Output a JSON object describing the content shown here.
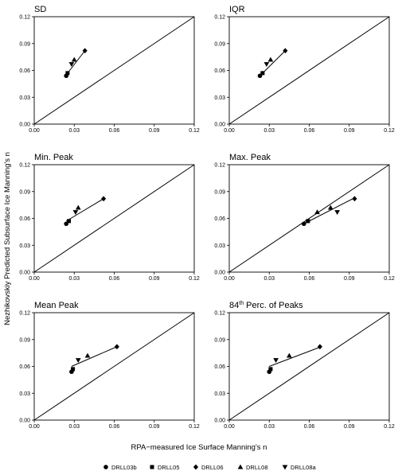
{
  "chart_data": {
    "type": "scatter",
    "xlabel": "RPA−measured Ice Surface Manning's n",
    "ylabel": "Nezhikovskiy Predicted Subsurface Ice Manning's n",
    "xlim": [
      0,
      0.12
    ],
    "ylim": [
      0,
      0.12
    ],
    "ticks": [
      "0.00",
      "0.03",
      "0.06",
      "0.09",
      "0.12"
    ],
    "legend_position": "bottom",
    "legend": [
      {
        "name": "DRLL03b",
        "marker": "circle"
      },
      {
        "name": "DRLL05",
        "marker": "square"
      },
      {
        "name": "DRLL06",
        "marker": "diamond"
      },
      {
        "name": "DRLL08",
        "marker": "triangle-up"
      },
      {
        "name": "DRLL08a",
        "marker": "triangle-down"
      }
    ],
    "reference_line": "1:1",
    "panels": [
      {
        "title": "SD",
        "title_sup": "",
        "title_rest": "",
        "points": [
          {
            "series": "DRLL03b",
            "x": 0.024,
            "y": 0.054
          },
          {
            "series": "DRLL05",
            "x": 0.025,
            "y": 0.057
          },
          {
            "series": "DRLL06",
            "x": 0.038,
            "y": 0.082
          },
          {
            "series": "DRLL08",
            "x": 0.03,
            "y": 0.072
          },
          {
            "series": "DRLL08a",
            "x": 0.028,
            "y": 0.067
          }
        ],
        "fit": [
          [
            0.024,
            0.055
          ],
          [
            0.038,
            0.082
          ]
        ]
      },
      {
        "title": "IQR",
        "title_sup": "",
        "title_rest": "",
        "points": [
          {
            "series": "DRLL03b",
            "x": 0.023,
            "y": 0.054
          },
          {
            "series": "DRLL05",
            "x": 0.025,
            "y": 0.057
          },
          {
            "series": "DRLL06",
            "x": 0.042,
            "y": 0.082
          },
          {
            "series": "DRLL08",
            "x": 0.031,
            "y": 0.072
          },
          {
            "series": "DRLL08a",
            "x": 0.028,
            "y": 0.067
          }
        ],
        "fit": [
          [
            0.023,
            0.054
          ],
          [
            0.042,
            0.082
          ]
        ]
      },
      {
        "title": "Min. Peak",
        "title_sup": "",
        "title_rest": "",
        "points": [
          {
            "series": "DRLL03b",
            "x": 0.024,
            "y": 0.054
          },
          {
            "series": "DRLL05",
            "x": 0.026,
            "y": 0.057
          },
          {
            "series": "DRLL06",
            "x": 0.052,
            "y": 0.082
          },
          {
            "series": "DRLL08",
            "x": 0.033,
            "y": 0.072
          },
          {
            "series": "DRLL08a",
            "x": 0.031,
            "y": 0.067
          }
        ],
        "fit": [
          [
            0.024,
            0.057
          ],
          [
            0.052,
            0.082
          ]
        ]
      },
      {
        "title": "Max. Peak",
        "title_sup": "",
        "title_rest": "",
        "points": [
          {
            "series": "DRLL03b",
            "x": 0.056,
            "y": 0.054
          },
          {
            "series": "DRLL05",
            "x": 0.059,
            "y": 0.057
          },
          {
            "series": "DRLL06",
            "x": 0.094,
            "y": 0.082
          },
          {
            "series": "DRLL08",
            "x": 0.076,
            "y": 0.072
          },
          {
            "series": "DRLL08a",
            "x": 0.081,
            "y": 0.067
          },
          {
            "series": "DRLL08",
            "x": 0.066,
            "y": 0.067
          }
        ],
        "fit": [
          [
            0.056,
            0.054
          ],
          [
            0.094,
            0.083
          ]
        ]
      },
      {
        "title": "Mean Peak",
        "title_sup": "",
        "title_rest": "",
        "points": [
          {
            "series": "DRLL03b",
            "x": 0.028,
            "y": 0.054
          },
          {
            "series": "DRLL05",
            "x": 0.029,
            "y": 0.057
          },
          {
            "series": "DRLL06",
            "x": 0.062,
            "y": 0.082
          },
          {
            "series": "DRLL08",
            "x": 0.04,
            "y": 0.072
          },
          {
            "series": "DRLL08a",
            "x": 0.033,
            "y": 0.067
          }
        ],
        "fit": [
          [
            0.028,
            0.06
          ],
          [
            0.062,
            0.082
          ]
        ]
      },
      {
        "title": "84",
        "title_sup": "th",
        "title_rest": " Perc. of Peaks",
        "points": [
          {
            "series": "DRLL03b",
            "x": 0.03,
            "y": 0.054
          },
          {
            "series": "DRLL05",
            "x": 0.031,
            "y": 0.057
          },
          {
            "series": "DRLL06",
            "x": 0.068,
            "y": 0.082
          },
          {
            "series": "DRLL08",
            "x": 0.045,
            "y": 0.072
          },
          {
            "series": "DRLL08a",
            "x": 0.035,
            "y": 0.067
          }
        ],
        "fit": [
          [
            0.03,
            0.06
          ],
          [
            0.069,
            0.082
          ]
        ]
      }
    ]
  }
}
